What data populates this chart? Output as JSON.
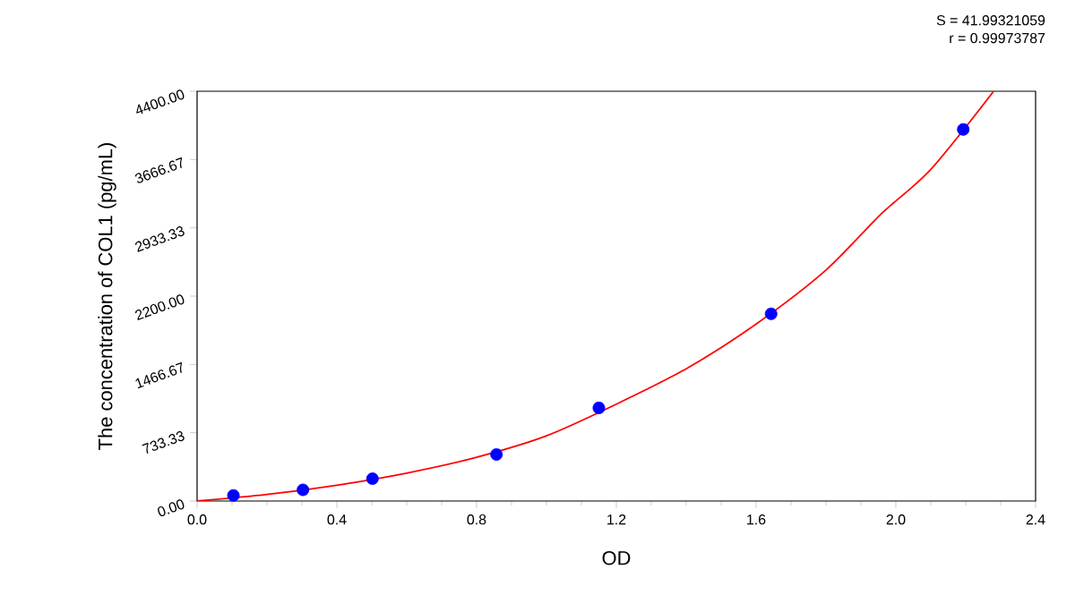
{
  "chart_data": {
    "type": "scatter",
    "xlabel": "OD",
    "ylabel": "The concentration of COL1 (pg/mL)",
    "annotations": [
      "S = 41.99321059",
      "r = 0.99973787"
    ],
    "xlim": [
      0,
      2.4
    ],
    "xticks": [
      {
        "value": 0,
        "label": "0.0"
      },
      {
        "value": 0.4,
        "label": "0.4"
      },
      {
        "value": 0.8,
        "label": "0.8"
      },
      {
        "value": 1.2,
        "label": "1.2"
      },
      {
        "value": 1.6,
        "label": "1.6"
      },
      {
        "value": 2.0,
        "label": "2.0"
      },
      {
        "value": 2.4,
        "label": "2.4"
      }
    ],
    "ylim": [
      0,
      4400
    ],
    "yticks": [
      {
        "value": 0,
        "label": "0.00"
      },
      {
        "value": 733.33,
        "label": "733.33"
      },
      {
        "value": 1466.67,
        "label": "1466.67"
      },
      {
        "value": 2200,
        "label": "2200.00"
      },
      {
        "value": 2933.33,
        "label": "2933.33"
      },
      {
        "value": 3666.67,
        "label": "3666.67"
      },
      {
        "value": 4400,
        "label": "4400.00"
      }
    ],
    "grid": false,
    "series": [
      {
        "marker": "circle",
        "color": "#0000ff",
        "x": [
          0.104,
          0.303,
          0.502,
          0.857,
          1.15,
          1.643,
          2.193
        ],
        "values": [
          60,
          120,
          240,
          500,
          1000,
          2010,
          3990
        ]
      },
      {
        "type": "line",
        "marker": "none",
        "line_style": "solid",
        "color": "#ff0000",
        "x": [
          0,
          0.2,
          0.4,
          0.6,
          0.8,
          1.0,
          1.2,
          1.4,
          1.6,
          1.8,
          1.96,
          2.1,
          2.28
        ],
        "values": [
          0,
          70,
          170,
          300,
          470,
          700,
          1040,
          1420,
          1900,
          2480,
          3090,
          3560,
          4400
        ]
      }
    ]
  }
}
